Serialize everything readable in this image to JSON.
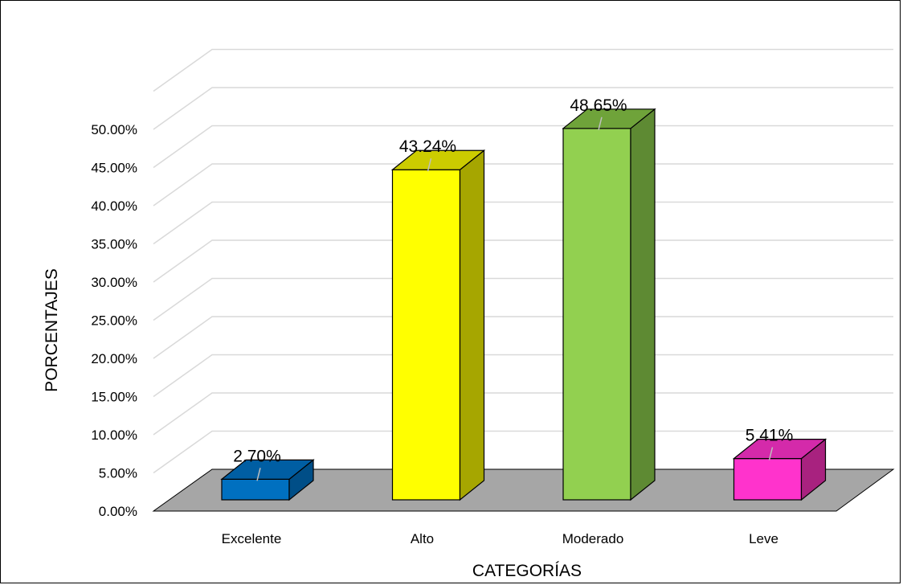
{
  "chart_data": {
    "type": "bar",
    "categories": [
      "Excelente",
      "Alto",
      "Moderado",
      "Leve"
    ],
    "values": [
      2.7,
      43.24,
      48.65,
      5.41
    ],
    "data_labels": [
      "2.70%",
      "43.24%",
      "48.65%",
      "5.41%"
    ],
    "y_ticks": [
      "0.00%",
      "5.00%",
      "10.00%",
      "15.00%",
      "20.00%",
      "25.00%",
      "30.00%",
      "35.00%",
      "40.00%",
      "45.00%",
      "50.00%"
    ],
    "ylim": [
      0,
      50
    ],
    "xlabel": "CATEGORÍAS",
    "ylabel": "PORCENTAJES",
    "grid": true,
    "legend": "none",
    "three_d": true,
    "colors": {
      "bars_front": [
        "#0070C0",
        "#FFFF00",
        "#92D050",
        "#FF33CC"
      ],
      "bars_side": [
        "#004E87",
        "#A6A600",
        "#5E8A33",
        "#A8227F"
      ],
      "bars_top": [
        "#005EA3",
        "#CCCC00",
        "#6FA33A",
        "#D42AAA"
      ],
      "floor": "#A6A6A6",
      "grid": "#D9D9D9"
    }
  }
}
